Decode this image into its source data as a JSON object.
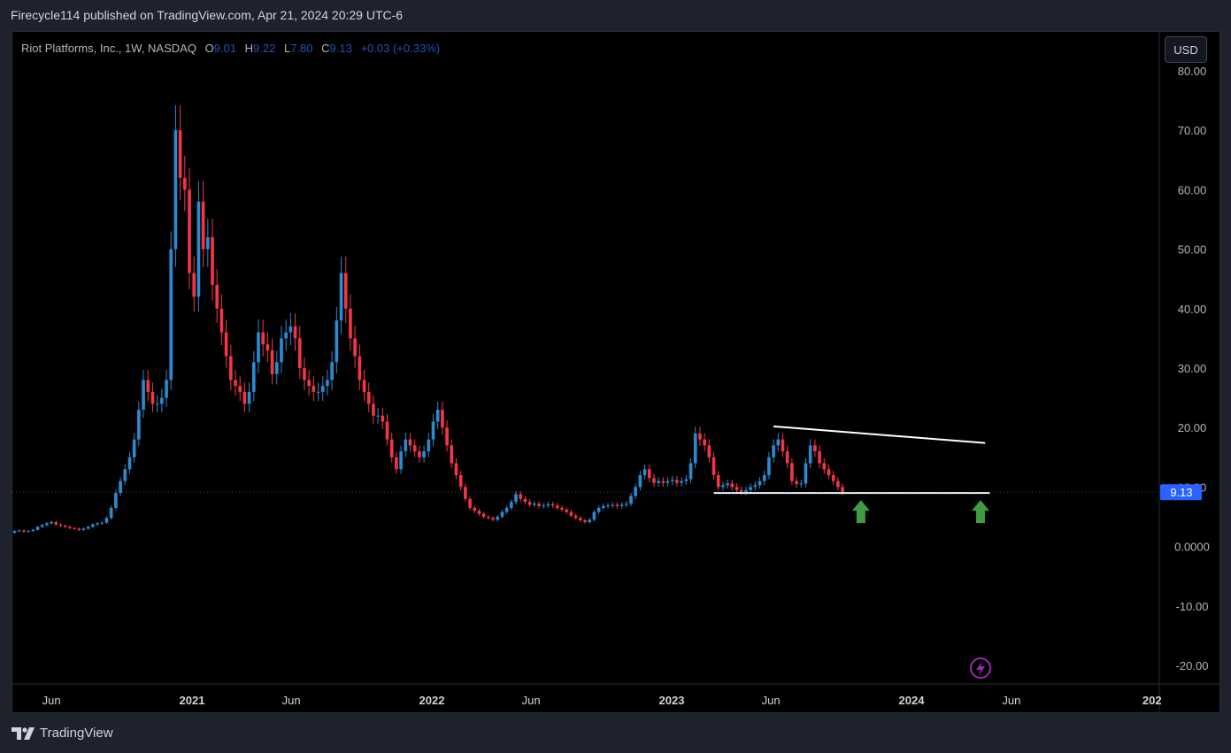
{
  "header": {
    "publisher_line": "Firecycle114 published on TradingView.com, Apr 21, 2024 20:29 UTC-6"
  },
  "legend": {
    "symbol": "Riot Platforms, Inc., 1W, NASDAQ",
    "o_label": "O",
    "o_value": "9.01",
    "h_label": "H",
    "h_value": "9.22",
    "l_label": "L",
    "l_value": "7.80",
    "c_label": "C",
    "c_value": "9.13",
    "change": "+0.03 (+0.33%)"
  },
  "currency_button": "USD",
  "footer": {
    "brand": "TradingView"
  },
  "colors": {
    "up": "#2a8bd1",
    "down": "#f23645",
    "last_price_bg": "#2962ff",
    "arrow": "#3d9c44",
    "line": "#ffffff"
  },
  "chart_data": {
    "type": "candlestick",
    "title": "Riot Platforms, Inc., 1W, NASDAQ",
    "y_ticks": [
      "80.00",
      "70.00",
      "60.00",
      "50.00",
      "40.00",
      "30.00",
      "20.00",
      "10.00",
      "0.0000",
      "-10.00",
      "-20.00"
    ],
    "y_tick_values": [
      80,
      70,
      60,
      50,
      40,
      30,
      20,
      10,
      0,
      -10,
      -20
    ],
    "ylim": [
      -23,
      83
    ],
    "x_ticks": [
      "Jun",
      "2021",
      "Jun",
      "2022",
      "Jun",
      "2023",
      "Jun",
      "2024",
      "Jun",
      "202"
    ],
    "x_tick_dates": [
      "2020-06-01",
      "2021-01-01",
      "2021-06-01",
      "2022-01-01",
      "2022-06-01",
      "2023-01-01",
      "2023-06-01",
      "2024-01-01",
      "2024-06-01",
      "2025-01-01"
    ],
    "last_price": "9.13",
    "price_path_weekly_close": [
      1.2,
      1.4,
      1.6,
      1.8,
      1.9,
      2.1,
      2.3,
      2.5,
      2.4,
      2.3,
      2.4,
      2.5,
      2.3,
      2.6,
      2.7,
      2.5,
      2.6,
      2.8,
      3.3,
      3.6,
      3.9,
      4.1,
      3.7,
      3.5,
      3.3,
      3.1,
      3.0,
      2.8,
      3.0,
      3.3,
      3.7,
      3.9,
      4.0,
      4.8,
      6.5,
      9,
      11,
      13,
      15,
      18,
      23,
      28,
      26,
      24,
      24,
      25,
      28,
      50,
      70,
      62,
      60,
      46,
      42,
      58,
      50,
      52,
      44,
      40,
      36,
      32,
      28,
      27,
      26,
      24,
      26,
      31,
      36,
      34,
      33,
      29,
      31,
      35,
      36,
      37,
      35,
      30,
      28,
      27,
      26,
      26,
      27,
      28,
      31,
      38,
      46,
      40,
      35,
      32,
      28,
      26,
      24,
      22,
      22,
      21,
      18,
      15,
      13,
      16,
      18,
      17,
      16,
      15,
      16,
      18,
      21,
      23,
      20,
      17,
      14,
      12,
      10,
      8,
      6.5,
      6,
      5.5,
      5,
      4.8,
      4.5,
      5,
      5.8,
      6.5,
      7.5,
      8.8,
      8,
      7.5,
      7,
      7.2,
      6.8,
      6.9,
      7.1,
      6.9,
      6.5,
      6.2,
      5.8,
      5.2,
      4.8,
      4.4,
      4.1,
      4.5,
      5.8,
      6.5,
      6.8,
      6.9,
      7.0,
      6.8,
      7.0,
      7.2,
      8.5,
      10,
      12,
      13,
      11.5,
      10.7,
      11.0,
      10.7,
      11.0,
      11.2,
      10.7,
      11.0,
      11.3,
      14,
      19,
      18,
      17,
      15,
      12,
      10,
      10.3,
      10.6,
      10,
      9.5,
      9.2,
      9.5,
      10,
      10.3,
      11,
      12,
      15,
      17,
      18,
      16,
      14,
      11,
      10.5,
      10.6,
      14,
      17,
      16,
      14,
      13,
      12,
      11,
      10,
      9.13
    ],
    "annotations": {
      "support_line_price": 9.0,
      "resistance_line": [
        {
          "date": "2023-06-05",
          "price": 20.2
        },
        {
          "date": "2024-04-22",
          "price": 17.4
        }
      ],
      "up_arrows_at_dates": [
        "2023-10-16",
        "2024-04-15"
      ]
    }
  }
}
